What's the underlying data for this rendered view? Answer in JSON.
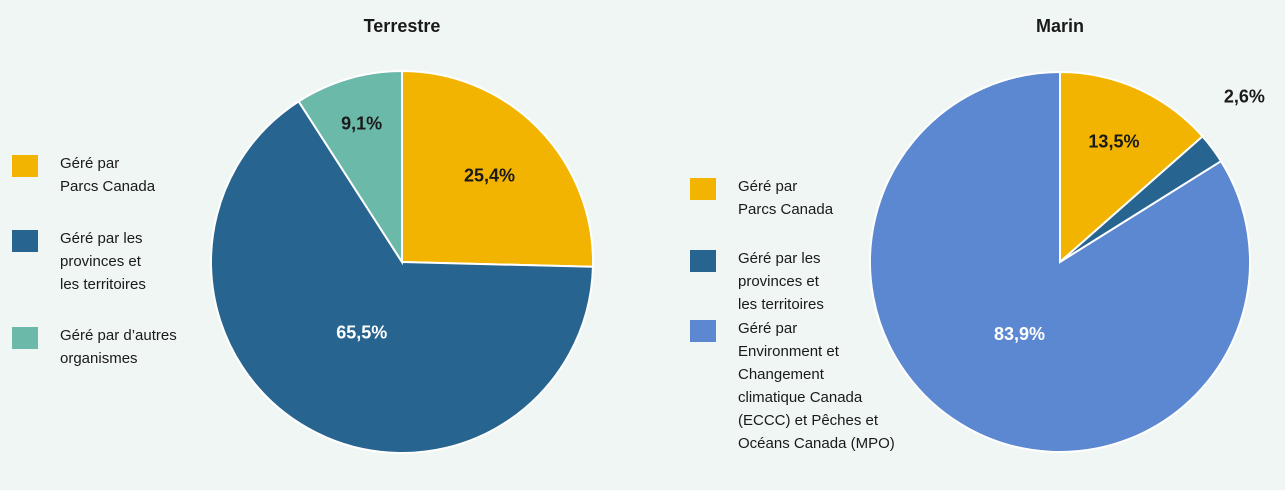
{
  "chart_data": [
    {
      "type": "pie",
      "title": "Terrestre",
      "categories": [
        "Géré par\nParcs Canada",
        "Géré par les\nprovinces et\nles territoires",
        "Géré par d’autres\norganismes"
      ],
      "values": [
        25.4,
        65.5,
        9.1
      ],
      "value_labels": [
        "25,4%",
        "65,5%",
        "9,1%"
      ],
      "colors": [
        "#f2b400",
        "#27648f",
        "#6bb9a8"
      ]
    },
    {
      "type": "pie",
      "title": "Marin",
      "categories": [
        "Géré par\nParcs Canada",
        "Géré par les\nprovinces et\nles territoires",
        "Géré par\nEnvironment et\nChangement\nclimatique Canada\n(ECCC) et Pêches et\nOcéans Canada (MPO)"
      ],
      "values": [
        13.5,
        2.6,
        83.9
      ],
      "value_labels": [
        "13,5%",
        "2,6%",
        "83,9%"
      ],
      "colors": [
        "#f2b400",
        "#27648f",
        "#5b88d0"
      ]
    }
  ]
}
